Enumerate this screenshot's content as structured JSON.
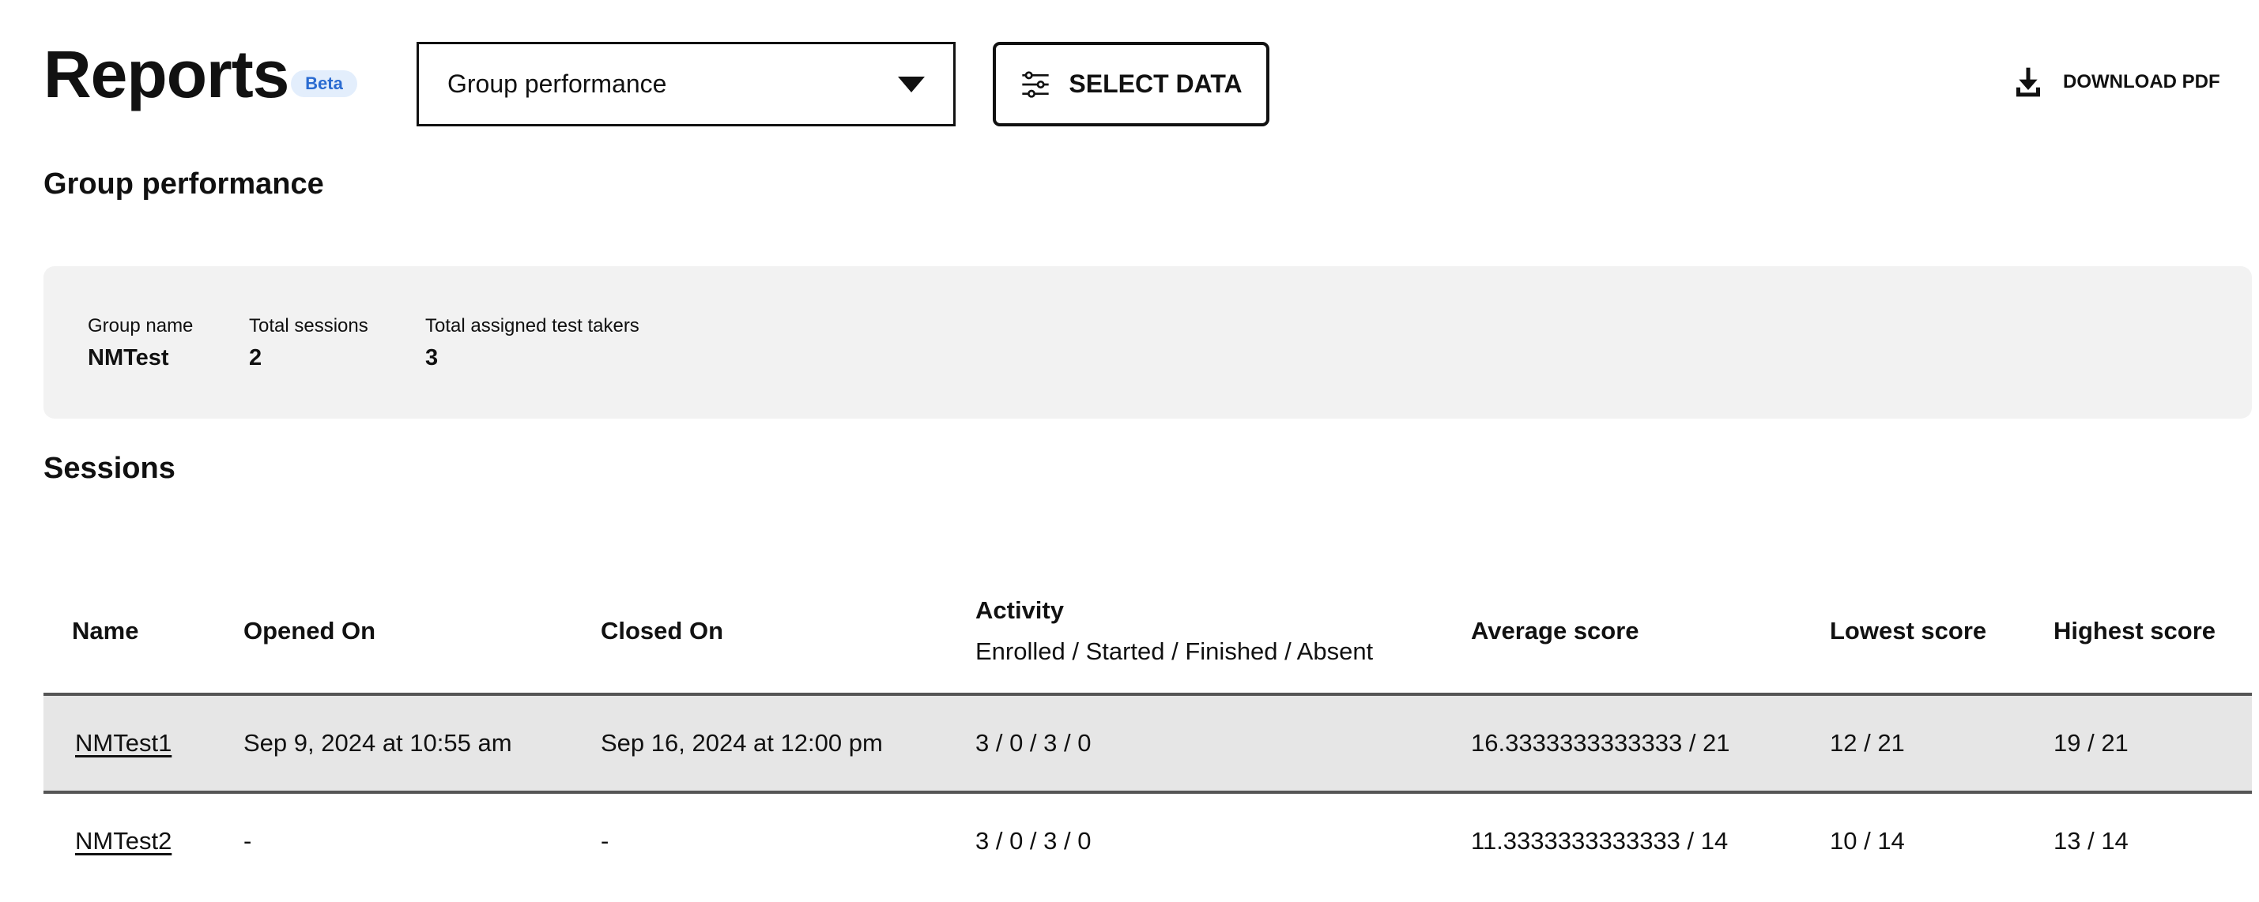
{
  "header": {
    "title": "Reports",
    "badge": "Beta",
    "report_select": {
      "value": "Group performance"
    },
    "select_data_label": "SELECT DATA",
    "download_label": "DOWNLOAD PDF"
  },
  "section_title": "Group performance",
  "summary": {
    "group_name": {
      "label": "Group name",
      "value": "NMTest"
    },
    "total_sessions": {
      "label": "Total sessions",
      "value": "2"
    },
    "total_test_takers": {
      "label": "Total assigned test takers",
      "value": "3"
    }
  },
  "sessions": {
    "title": "Sessions",
    "columns": {
      "name": "Name",
      "opened": "Opened On",
      "closed": "Closed On",
      "activity": "Activity",
      "activity_sub": "Enrolled / Started / Finished / Absent",
      "average": "Average score",
      "lowest": "Lowest score",
      "highest": "Highest score"
    },
    "rows": [
      {
        "name": "NMTest1",
        "opened": "Sep 9, 2024 at 10:55 am",
        "closed": "Sep 16, 2024 at 12:00 pm",
        "activity": "3 / 0 / 3 / 0",
        "average": "16.3333333333333 / 21",
        "lowest": "12 / 21",
        "highest": "19 / 21"
      },
      {
        "name": "NMTest2",
        "opened": "-",
        "closed": "-",
        "activity": "3 / 0 / 3 / 0",
        "average": "11.3333333333333 / 14",
        "lowest": "10 / 14",
        "highest": "13 / 14"
      }
    ]
  },
  "colors": {
    "badge_bg": "#e3eefc",
    "badge_text": "#2a6bd1",
    "summary_bg": "#f2f2f2",
    "highlight_row": "#e6e6e6"
  }
}
